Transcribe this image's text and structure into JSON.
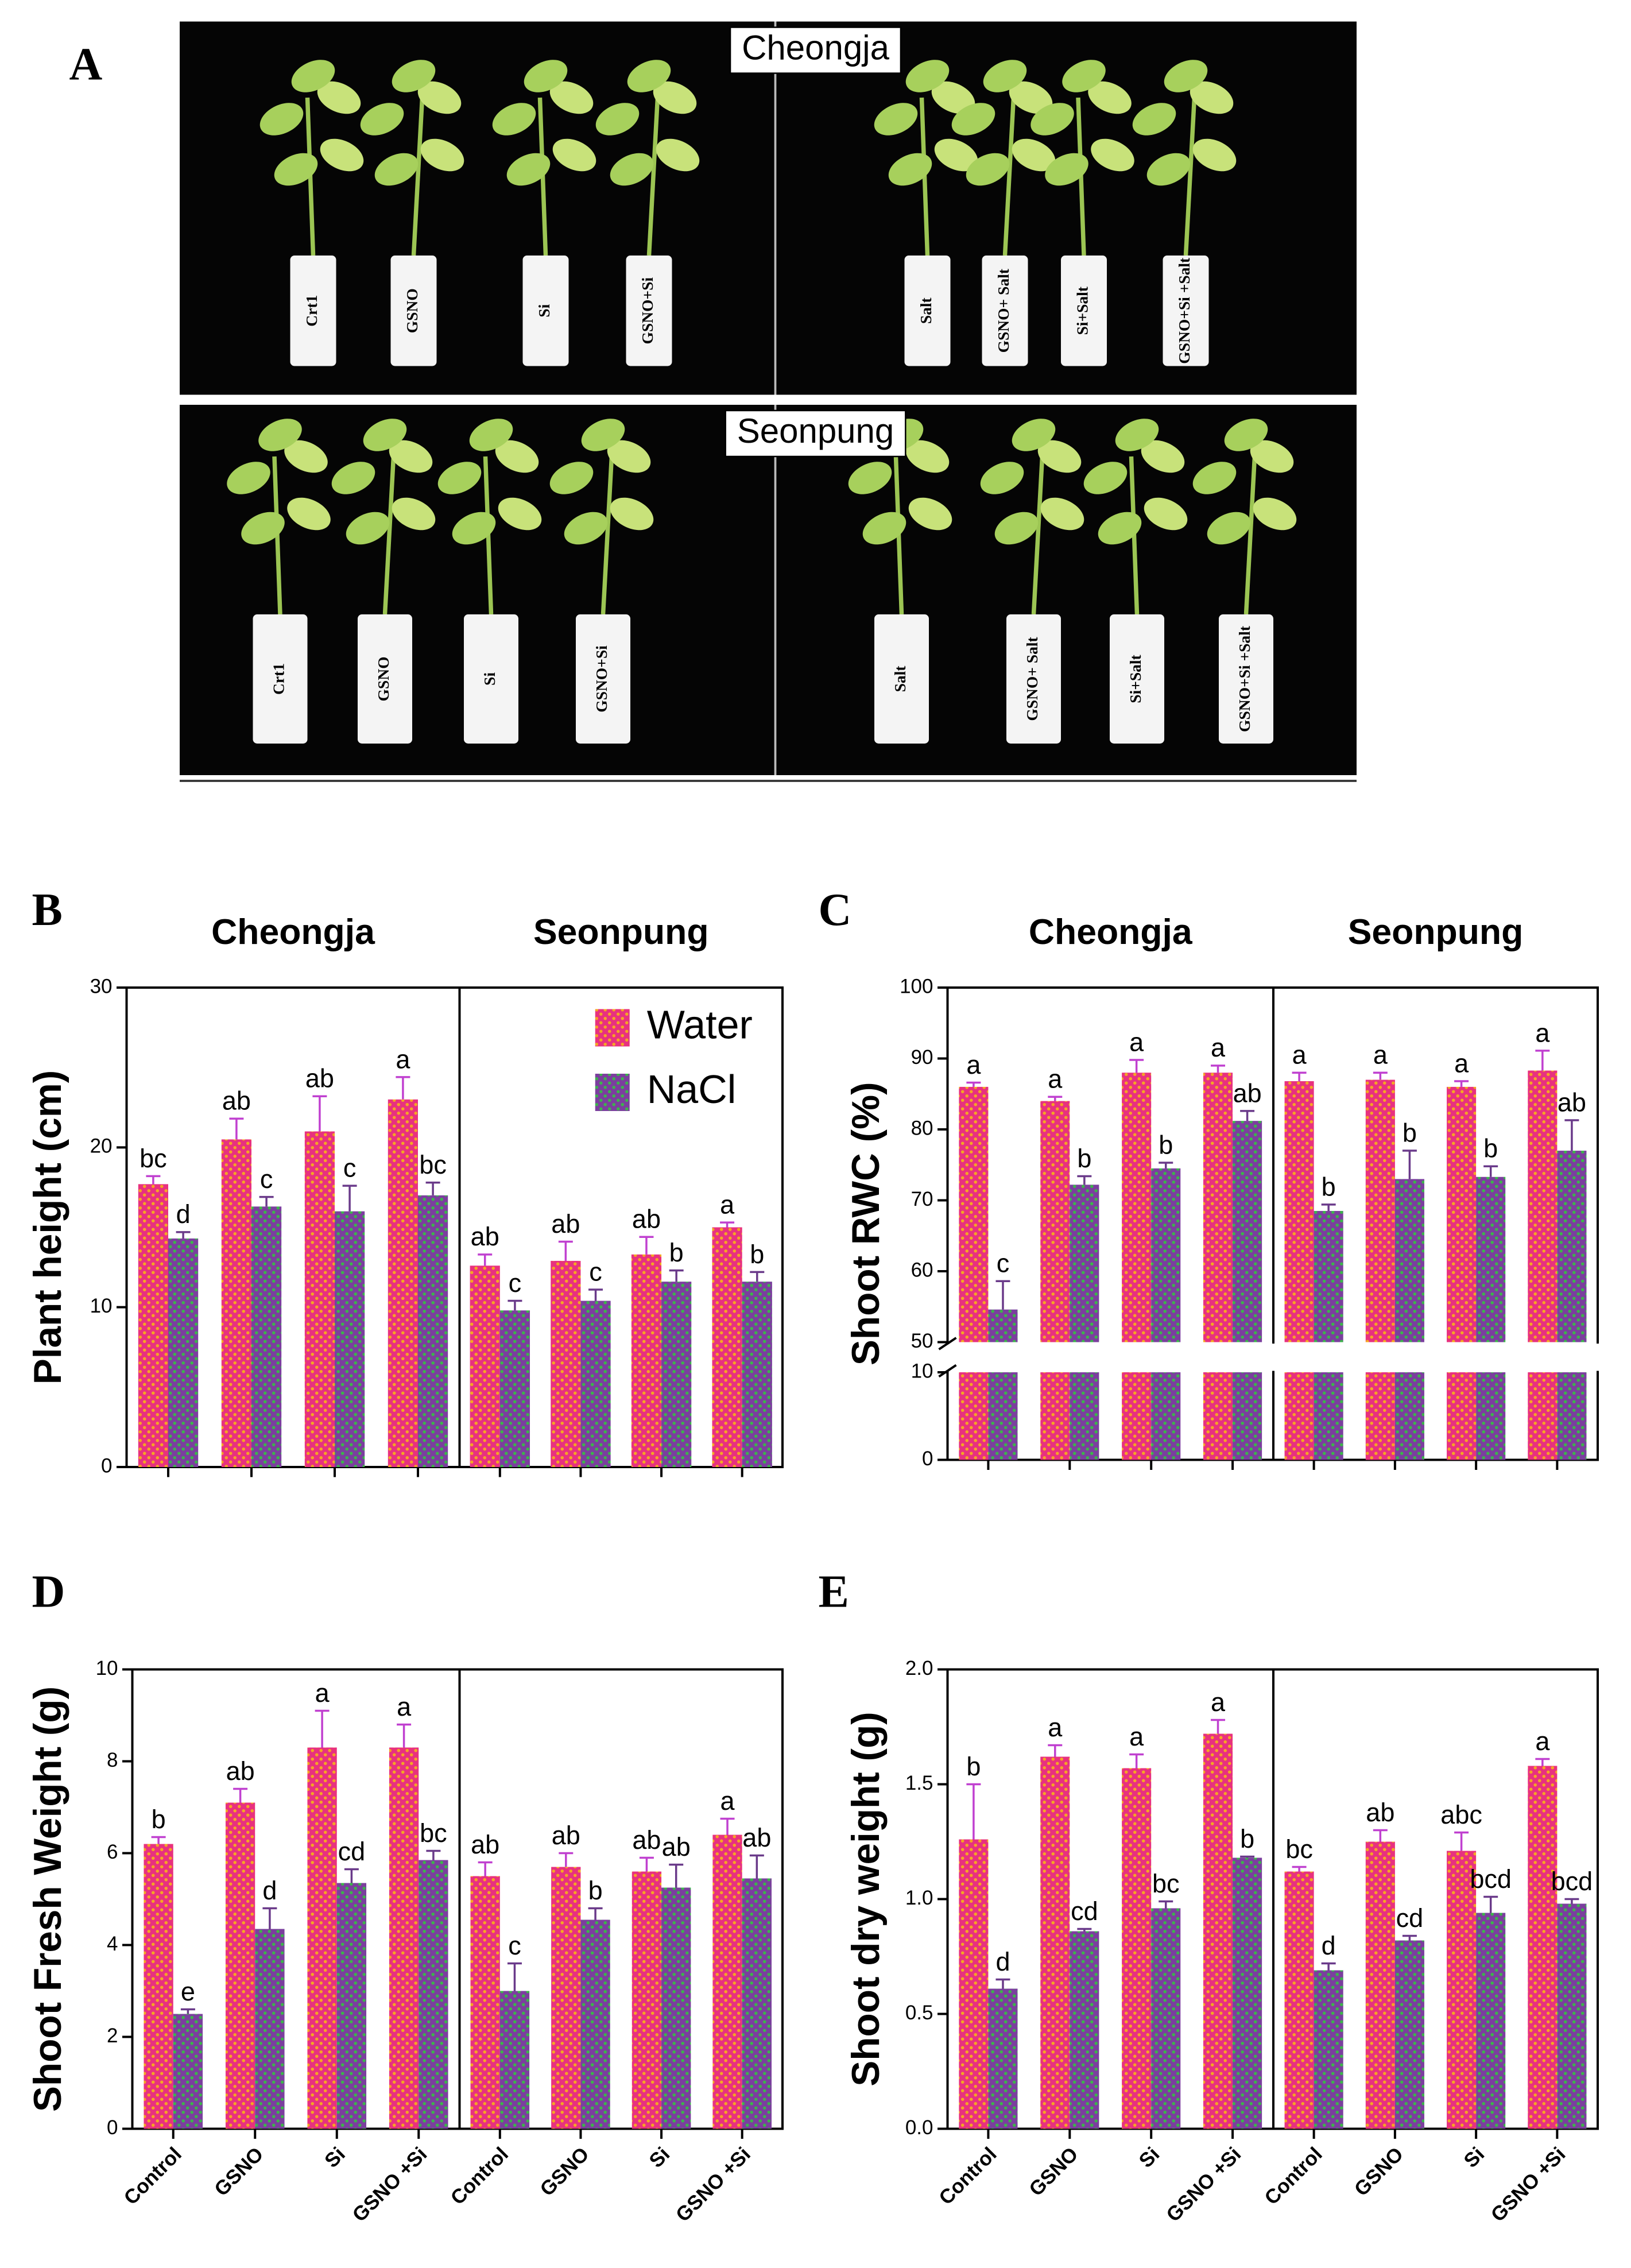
{
  "panel_a": {
    "letter": "A",
    "cultivars": [
      "Cheongja",
      "Seonpung"
    ],
    "pots": [
      [
        "Crt1",
        "GSNO",
        "Si",
        "GSNO+Si",
        "Salt",
        "GSNO+ Salt",
        "Si+Salt",
        "GSNO+Si +Salt"
      ],
      [
        "Crt1",
        "GSNO",
        "Si",
        "GSNO+Si",
        "Salt",
        "GSNO+ Salt",
        "Si+Salt",
        "GSNO+Si +Salt"
      ]
    ]
  },
  "chart_data": [
    {
      "type": "bar",
      "panel": "B",
      "ylabel": "Plant height (cm)",
      "group_labels": [
        "Cheongja",
        "Seonpung"
      ],
      "categories": [
        null,
        null,
        null,
        null,
        null,
        null,
        null,
        null
      ],
      "ylim": [
        0,
        30
      ],
      "yticks": [
        0,
        10,
        20,
        30
      ],
      "legend": "upper right",
      "series": [
        {
          "name": "Water",
          "color": "#e8317f",
          "pattern_color": "#f5a623",
          "values": [
            17.7,
            20.5,
            21,
            23,
            12.6,
            12.9,
            13.3,
            15
          ],
          "errors": [
            0.5,
            1.3,
            2.2,
            1.4,
            0.7,
            1.2,
            1.1,
            0.3
          ],
          "letters": [
            "bc",
            "ab",
            "ab",
            "a",
            "ab",
            "ab",
            "ab",
            "a"
          ]
        },
        {
          "name": "NaCl",
          "color": "#7b3f9e",
          "pattern_color": "#3cb44b",
          "values": [
            14.3,
            16.3,
            16,
            17,
            9.8,
            10.4,
            11.6,
            11.6
          ],
          "errors": [
            0.4,
            0.6,
            1.6,
            0.8,
            0.6,
            0.7,
            0.7,
            0.6
          ],
          "letters": [
            "d",
            "c",
            "c",
            "bc",
            "c",
            "c",
            "b",
            "b"
          ]
        }
      ]
    },
    {
      "type": "bar",
      "panel": "C",
      "ylabel": "Shoot RWC (%)",
      "group_labels": [
        "Cheongja",
        "Seonpung"
      ],
      "categories": [
        null,
        null,
        null,
        null,
        null,
        null,
        null,
        null
      ],
      "ylim": [
        0,
        100
      ],
      "yticks": [
        0,
        10,
        50,
        60,
        70,
        80,
        90,
        100
      ],
      "axis_break": [
        10,
        50
      ],
      "series": [
        {
          "color": "#e8317f",
          "pattern_color": "#f5a623",
          "values": [
            86,
            84,
            88,
            88,
            86.8,
            87,
            86,
            88.3
          ],
          "errors": [
            0.6,
            0.6,
            1.8,
            1,
            1.2,
            1,
            0.8,
            2.8
          ],
          "letters": [
            "a",
            "a",
            "a",
            "a",
            "a",
            "a",
            "a",
            "a"
          ]
        },
        {
          "color": "#7b3f9e",
          "pattern_color": "#3cb44b",
          "values": [
            54.6,
            72.2,
            74.5,
            81.2,
            68.5,
            73,
            73.3,
            77
          ],
          "errors": [
            4,
            1.2,
            0.8,
            1.4,
            0.9,
            4,
            1.5,
            4.3
          ],
          "letters": [
            "c",
            "b",
            "b",
            "ab",
            "b",
            "b",
            "b",
            "ab"
          ]
        }
      ]
    },
    {
      "type": "bar",
      "panel": "D",
      "ylabel": "Shoot Fresh Weight (g)",
      "categories": [
        "Control",
        "GSNO",
        "Si",
        "GSNO +Si",
        "Control",
        "GSNO",
        "Si",
        "GSNO +Si"
      ],
      "ylim": [
        0,
        10
      ],
      "yticks": [
        0,
        2,
        4,
        6,
        8,
        10
      ],
      "series": [
        {
          "color": "#e8317f",
          "pattern_color": "#f5a623",
          "values": [
            6.2,
            7.1,
            8.3,
            8.3,
            5.5,
            5.7,
            5.6,
            6.4
          ],
          "errors": [
            0.15,
            0.3,
            0.8,
            0.5,
            0.3,
            0.3,
            0.3,
            0.35
          ],
          "letters": [
            "b",
            "ab",
            "a",
            "a",
            "ab",
            "ab",
            "ab",
            "a"
          ]
        },
        {
          "color": "#7b3f9e",
          "pattern_color": "#3cb44b",
          "values": [
            2.5,
            4.35,
            5.35,
            5.85,
            3.0,
            4.55,
            5.25,
            5.45
          ],
          "errors": [
            0.1,
            0.45,
            0.3,
            0.2,
            0.6,
            0.25,
            0.5,
            0.5
          ],
          "letters": [
            "e",
            "d",
            "cd",
            "bc",
            "c",
            "b",
            "ab",
            "ab"
          ]
        }
      ]
    },
    {
      "type": "bar",
      "panel": "E",
      "ylabel": "Shoot dry weight (g)",
      "categories": [
        "Control",
        "GSNO",
        "Si",
        "GSNO +Si",
        "Control",
        "GSNO",
        "Si",
        "GSNO +Si"
      ],
      "ylim": [
        0,
        2
      ],
      "yticks": [
        {
          "value": 0,
          "label": "0.0"
        },
        {
          "value": 0.5,
          "label": "0.5"
        },
        {
          "value": 1,
          "label": "1.0"
        },
        {
          "value": 1.5,
          "label": "1.5"
        },
        {
          "value": 2,
          "label": "2.0"
        }
      ],
      "series": [
        {
          "color": "#e8317f",
          "pattern_color": "#f5a623",
          "values": [
            1.26,
            1.62,
            1.57,
            1.72,
            1.12,
            1.25,
            1.21,
            1.58
          ],
          "errors": [
            0.24,
            0.05,
            0.06,
            0.06,
            0.02,
            0.05,
            0.08,
            0.03
          ],
          "letters": [
            "b",
            "a",
            "a",
            "a",
            "bc",
            "ab",
            "abc",
            "a"
          ]
        },
        {
          "color": "#7b3f9e",
          "pattern_color": "#3cb44b",
          "values": [
            0.61,
            0.86,
            0.96,
            1.18,
            0.69,
            0.82,
            0.94,
            0.98
          ],
          "errors": [
            0.04,
            0.01,
            0.03,
            0.005,
            0.03,
            0.02,
            0.07,
            0.02
          ],
          "letters": [
            "d",
            "cd",
            "bc",
            "b",
            "d",
            "cd",
            "bcd",
            "bcd"
          ]
        }
      ]
    }
  ]
}
